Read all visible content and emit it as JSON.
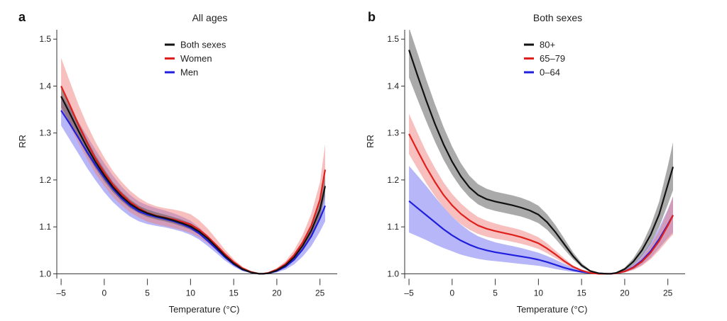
{
  "chart_data": [
    {
      "type": "line",
      "panel_label": "a",
      "title": "All ages",
      "xlabel": "Temperature (°C)",
      "ylabel": "RR",
      "xlim": [
        -5.5,
        27
      ],
      "ylim": [
        0.99,
        1.52
      ],
      "xticks": [
        -5,
        0,
        5,
        10,
        15,
        20,
        25
      ],
      "yticks": [
        1.0,
        1.1,
        1.2,
        1.3,
        1.4,
        1.5
      ],
      "grid": false,
      "legend_position": "top-center",
      "series": [
        {
          "name": "Men",
          "color": "#1f1fdd",
          "band_color": "#6e6ef2",
          "x": [
            -5,
            -4,
            -3,
            -2,
            -1,
            0,
            1,
            2,
            3,
            4,
            5,
            6,
            7,
            8,
            9,
            10,
            11,
            12,
            13,
            14,
            15,
            16,
            17,
            18,
            18.3,
            19,
            20,
            21,
            22,
            23,
            24,
            25,
            25.6
          ],
          "y": [
            1.348,
            1.32,
            1.29,
            1.26,
            1.231,
            1.205,
            1.181,
            1.161,
            1.145,
            1.133,
            1.126,
            1.121,
            1.117,
            1.112,
            1.106,
            1.098,
            1.086,
            1.07,
            1.053,
            1.035,
            1.02,
            1.009,
            1.003,
            1.0,
            1.0,
            1.001,
            1.006,
            1.015,
            1.03,
            1.052,
            1.08,
            1.118,
            1.145
          ],
          "lower": [
            1.316,
            1.286,
            1.256,
            1.226,
            1.199,
            1.174,
            1.153,
            1.136,
            1.122,
            1.112,
            1.106,
            1.102,
            1.099,
            1.095,
            1.09,
            1.083,
            1.073,
            1.059,
            1.044,
            1.028,
            1.015,
            1.006,
            1.002,
            1.0,
            1.0,
            1.0,
            1.003,
            1.009,
            1.02,
            1.037,
            1.059,
            1.09,
            1.112
          ],
          "upper": [
            1.381,
            1.355,
            1.324,
            1.294,
            1.264,
            1.236,
            1.209,
            1.186,
            1.168,
            1.154,
            1.146,
            1.14,
            1.135,
            1.129,
            1.122,
            1.113,
            1.099,
            1.082,
            1.062,
            1.042,
            1.025,
            1.012,
            1.004,
            1.0,
            1.0,
            1.002,
            1.009,
            1.021,
            1.04,
            1.067,
            1.101,
            1.146,
            1.178
          ]
        },
        {
          "name": "Women",
          "color": "#e0201c",
          "band_color": "#f07f7b",
          "x": [
            -5,
            -4,
            -3,
            -2,
            -1,
            0,
            1,
            2,
            3,
            4,
            5,
            6,
            7,
            8,
            9,
            10,
            11,
            12,
            13,
            14,
            15,
            16,
            17,
            18,
            18.3,
            19,
            20,
            21,
            22,
            23,
            24,
            25,
            25.6
          ],
          "y": [
            1.4,
            1.36,
            1.318,
            1.28,
            1.245,
            1.216,
            1.19,
            1.17,
            1.153,
            1.14,
            1.13,
            1.124,
            1.12,
            1.116,
            1.111,
            1.105,
            1.094,
            1.079,
            1.061,
            1.042,
            1.025,
            1.012,
            1.004,
            1.0,
            1.0,
            1.002,
            1.009,
            1.021,
            1.04,
            1.067,
            1.103,
            1.158,
            1.222
          ],
          "lower": [
            1.35,
            1.315,
            1.279,
            1.245,
            1.213,
            1.187,
            1.164,
            1.146,
            1.131,
            1.12,
            1.111,
            1.106,
            1.102,
            1.098,
            1.093,
            1.087,
            1.078,
            1.065,
            1.05,
            1.034,
            1.02,
            1.009,
            1.003,
            1.0,
            1.0,
            1.001,
            1.006,
            1.015,
            1.03,
            1.051,
            1.08,
            1.125,
            1.175
          ],
          "upper": [
            1.46,
            1.41,
            1.361,
            1.318,
            1.28,
            1.248,
            1.219,
            1.196,
            1.177,
            1.162,
            1.151,
            1.144,
            1.14,
            1.137,
            1.133,
            1.127,
            1.114,
            1.096,
            1.074,
            1.051,
            1.031,
            1.015,
            1.005,
            1.0,
            1.0,
            1.003,
            1.012,
            1.027,
            1.05,
            1.083,
            1.128,
            1.195,
            1.276
          ]
        },
        {
          "name": "Both sexes",
          "color": "#111111",
          "band_color": "#555555",
          "x": [
            -5,
            -4,
            -3,
            -2,
            -1,
            0,
            1,
            2,
            3,
            4,
            5,
            6,
            7,
            8,
            9,
            10,
            11,
            12,
            13,
            14,
            15,
            16,
            17,
            18,
            18.3,
            19,
            20,
            21,
            22,
            23,
            24,
            25,
            25.6
          ],
          "y": [
            1.378,
            1.342,
            1.305,
            1.27,
            1.238,
            1.21,
            1.185,
            1.165,
            1.149,
            1.137,
            1.129,
            1.123,
            1.119,
            1.114,
            1.108,
            1.101,
            1.09,
            1.075,
            1.057,
            1.038,
            1.022,
            1.01,
            1.003,
            1.0,
            1.0,
            1.001,
            1.007,
            1.018,
            1.035,
            1.06,
            1.092,
            1.137,
            1.187
          ],
          "lower": [
            1.355,
            1.322,
            1.287,
            1.254,
            1.224,
            1.197,
            1.174,
            1.155,
            1.14,
            1.129,
            1.121,
            1.116,
            1.112,
            1.107,
            1.101,
            1.094,
            1.084,
            1.07,
            1.053,
            1.035,
            1.02,
            1.009,
            1.003,
            1.0,
            1.0,
            1.001,
            1.005,
            1.014,
            1.029,
            1.051,
            1.08,
            1.12,
            1.165
          ],
          "upper": [
            1.4,
            1.362,
            1.323,
            1.286,
            1.252,
            1.223,
            1.196,
            1.175,
            1.158,
            1.145,
            1.137,
            1.131,
            1.126,
            1.121,
            1.115,
            1.108,
            1.096,
            1.08,
            1.061,
            1.041,
            1.024,
            1.011,
            1.004,
            1.0,
            1.0,
            1.002,
            1.009,
            1.022,
            1.041,
            1.069,
            1.104,
            1.154,
            1.209
          ]
        }
      ],
      "legend_order": [
        "Both sexes",
        "Women",
        "Men"
      ]
    },
    {
      "type": "line",
      "panel_label": "b",
      "title": "Both sexes",
      "xlabel": "Temperature (°C)",
      "ylabel": "RR",
      "xlim": [
        -5.5,
        27
      ],
      "ylim": [
        0.99,
        1.52
      ],
      "xticks": [
        -5,
        0,
        5,
        10,
        15,
        20,
        25
      ],
      "yticks": [
        1.0,
        1.1,
        1.2,
        1.3,
        1.4,
        1.5
      ],
      "grid": false,
      "legend_position": "top-center",
      "series": [
        {
          "name": "0–64",
          "color": "#1f1fdd",
          "band_color": "#6e6ef2",
          "x": [
            -5,
            -4,
            -3,
            -2,
            -1,
            0,
            1,
            2,
            3,
            4,
            5,
            6,
            7,
            8,
            9,
            10,
            11,
            12,
            13,
            14,
            15,
            16,
            17,
            18,
            18.3,
            19,
            20,
            21,
            22,
            23,
            24,
            25,
            25.6
          ],
          "y": [
            1.155,
            1.14,
            1.125,
            1.11,
            1.095,
            1.082,
            1.071,
            1.062,
            1.055,
            1.05,
            1.046,
            1.043,
            1.04,
            1.037,
            1.034,
            1.03,
            1.025,
            1.019,
            1.013,
            1.008,
            1.004,
            1.002,
            1.001,
            1.0,
            1.0,
            1.001,
            1.005,
            1.014,
            1.028,
            1.048,
            1.074,
            1.105,
            1.125
          ],
          "lower": [
            1.088,
            1.08,
            1.072,
            1.063,
            1.055,
            1.048,
            1.041,
            1.036,
            1.032,
            1.029,
            1.027,
            1.025,
            1.023,
            1.021,
            1.019,
            1.017,
            1.014,
            1.01,
            1.007,
            1.004,
            1.002,
            1.001,
            1.0,
            1.0,
            1.0,
            1.0,
            1.003,
            1.009,
            1.019,
            1.034,
            1.055,
            1.076,
            1.088
          ],
          "upper": [
            1.23,
            1.209,
            1.187,
            1.164,
            1.142,
            1.122,
            1.105,
            1.091,
            1.08,
            1.073,
            1.067,
            1.063,
            1.059,
            1.055,
            1.05,
            1.045,
            1.038,
            1.03,
            1.021,
            1.013,
            1.007,
            1.003,
            1.001,
            1.0,
            1.0,
            1.002,
            1.008,
            1.02,
            1.04,
            1.066,
            1.098,
            1.137,
            1.165
          ]
        },
        {
          "name": "65–79",
          "color": "#e0201c",
          "band_color": "#f07f7b",
          "x": [
            -5,
            -4,
            -3,
            -2,
            -1,
            0,
            1,
            2,
            3,
            4,
            5,
            6,
            7,
            8,
            9,
            10,
            11,
            12,
            13,
            14,
            15,
            16,
            17,
            18,
            18.3,
            19,
            20,
            21,
            22,
            23,
            24,
            25,
            25.6
          ],
          "y": [
            1.298,
            1.262,
            1.227,
            1.196,
            1.168,
            1.146,
            1.128,
            1.114,
            1.103,
            1.096,
            1.091,
            1.087,
            1.083,
            1.078,
            1.072,
            1.065,
            1.054,
            1.041,
            1.027,
            1.015,
            1.007,
            1.002,
            1.0,
            1.0,
            1.0,
            1.001,
            1.005,
            1.013,
            1.026,
            1.045,
            1.07,
            1.103,
            1.125
          ],
          "lower": [
            1.255,
            1.224,
            1.193,
            1.166,
            1.142,
            1.122,
            1.106,
            1.094,
            1.085,
            1.079,
            1.075,
            1.072,
            1.068,
            1.064,
            1.059,
            1.053,
            1.044,
            1.033,
            1.022,
            1.012,
            1.005,
            1.002,
            1.0,
            1.0,
            1.0,
            1.0,
            1.003,
            1.008,
            1.017,
            1.031,
            1.05,
            1.072,
            1.084
          ],
          "upper": [
            1.341,
            1.3,
            1.26,
            1.226,
            1.195,
            1.17,
            1.15,
            1.134,
            1.121,
            1.113,
            1.107,
            1.102,
            1.098,
            1.093,
            1.086,
            1.078,
            1.065,
            1.049,
            1.033,
            1.018,
            1.009,
            1.003,
            1.0,
            1.0,
            1.0,
            1.002,
            1.008,
            1.018,
            1.035,
            1.06,
            1.091,
            1.135,
            1.165
          ]
        },
        {
          "name": "80+",
          "color": "#111111",
          "band_color": "#555555",
          "x": [
            -5,
            -4,
            -3,
            -2,
            -1,
            0,
            1,
            2,
            3,
            4,
            5,
            6,
            7,
            8,
            9,
            10,
            11,
            12,
            13,
            14,
            15,
            16,
            17,
            18,
            18.3,
            19,
            20,
            21,
            22,
            23,
            24,
            25,
            25.6
          ],
          "y": [
            1.477,
            1.422,
            1.369,
            1.32,
            1.276,
            1.239,
            1.208,
            1.184,
            1.168,
            1.159,
            1.154,
            1.15,
            1.146,
            1.141,
            1.135,
            1.126,
            1.11,
            1.088,
            1.063,
            1.038,
            1.018,
            1.006,
            1.001,
            1.0,
            1.0,
            1.002,
            1.01,
            1.026,
            1.05,
            1.083,
            1.127,
            1.19,
            1.228
          ],
          "lower": [
            1.418,
            1.371,
            1.325,
            1.282,
            1.243,
            1.211,
            1.184,
            1.163,
            1.148,
            1.139,
            1.134,
            1.13,
            1.126,
            1.122,
            1.116,
            1.108,
            1.094,
            1.074,
            1.052,
            1.031,
            1.014,
            1.004,
            1.0,
            1.0,
            1.0,
            1.001,
            1.007,
            1.019,
            1.038,
            1.064,
            1.1,
            1.148,
            1.178
          ],
          "upper": [
            1.525,
            1.47,
            1.414,
            1.362,
            1.313,
            1.271,
            1.236,
            1.209,
            1.191,
            1.181,
            1.175,
            1.171,
            1.167,
            1.162,
            1.155,
            1.145,
            1.127,
            1.103,
            1.075,
            1.046,
            1.023,
            1.008,
            1.002,
            1.0,
            1.0,
            1.003,
            1.013,
            1.033,
            1.062,
            1.102,
            1.154,
            1.23,
            1.28
          ]
        }
      ],
      "legend_order": [
        "80+",
        "65–79",
        "0–64"
      ]
    }
  ]
}
